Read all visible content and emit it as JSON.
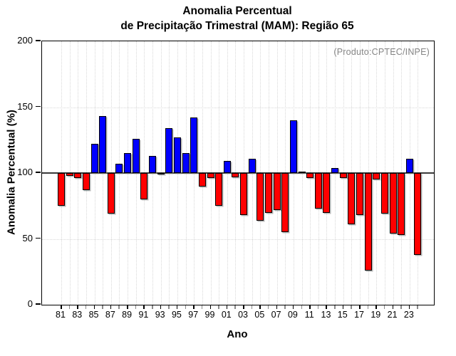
{
  "header": {
    "title_line1": "Anomalia Percentual",
    "title_line2": "de Precipitação Trimestral (MAM): Região 65"
  },
  "annotation": {
    "produto": "(Produto:CPTEC/INPE)"
  },
  "chart_data": {
    "type": "bar",
    "title": "Anomalia Percentual de Precipitação Trimestral (MAM): Região 65",
    "xlabel": "Ano",
    "ylabel": "Anomalia Percentual (%)",
    "ylim": [
      0,
      200
    ],
    "yticks": [
      0,
      50,
      100,
      150,
      200
    ],
    "ygrid_dotted": [
      50,
      150
    ],
    "baseline": 100,
    "grid": "dotted vertical line per year, dotted horizontal at 50 and 150, solid line at 100",
    "legend": "none",
    "colors": {
      "above_baseline": "#0000ff",
      "below_baseline": "#ff0000",
      "baseline_line": "#3a3a3a",
      "gridline": "#d8d8d8",
      "annotation_text": "#858585"
    },
    "x_tick_label_years": [
      "81",
      "83",
      "85",
      "87",
      "89",
      "91",
      "93",
      "95",
      "97",
      "99",
      "01",
      "03",
      "05",
      "07",
      "09",
      "11",
      "13",
      "15",
      "17",
      "19",
      "21",
      "23"
    ],
    "years": [
      1981,
      1982,
      1983,
      1984,
      1985,
      1986,
      1987,
      1988,
      1989,
      1990,
      1991,
      1992,
      1993,
      1994,
      1995,
      1996,
      1997,
      1998,
      1999,
      2000,
      2001,
      2002,
      2003,
      2004,
      2005,
      2006,
      2007,
      2008,
      2009,
      2010,
      2011,
      2012,
      2013,
      2014,
      2015,
      2016,
      2017,
      2018,
      2019,
      2020,
      2021,
      2022,
      2023,
      2024
    ],
    "values": [
      75,
      98,
      96,
      87,
      122,
      143,
      69,
      107,
      115,
      126,
      80,
      113,
      100,
      134,
      127,
      115,
      142,
      90,
      96,
      75,
      109,
      97,
      68,
      111,
      64,
      70,
      72,
      55,
      140,
      101,
      96,
      73,
      70,
      104,
      96,
      61,
      68,
      26,
      95,
      69,
      54,
      53,
      111,
      38
    ],
    "annotation": "(Produto:CPTEC/INPE)"
  }
}
